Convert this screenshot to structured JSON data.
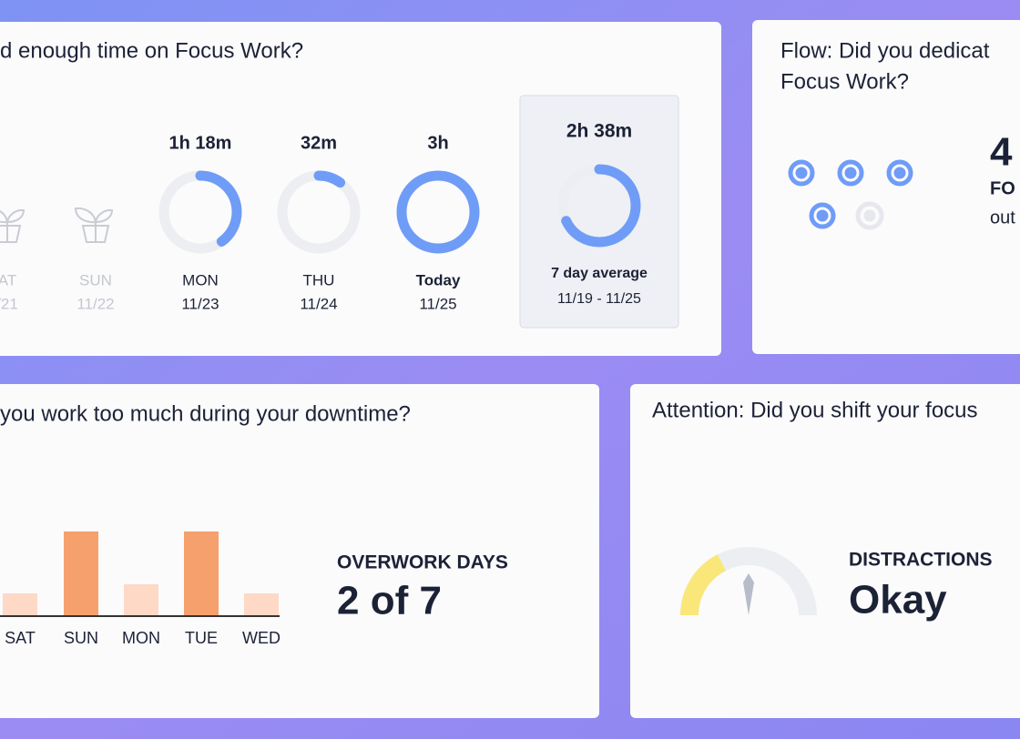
{
  "focus_card": {
    "title": "d enough time on Focus Work?",
    "days": [
      {
        "day": "AT",
        "date": "/21",
        "empty": true
      },
      {
        "day": "SUN",
        "date": "11/22",
        "empty": true
      },
      {
        "time": "1h 18m",
        "day": "MON",
        "date": "11/23",
        "progress": 0.4
      },
      {
        "time": "32m",
        "day": "THU",
        "date": "11/24",
        "progress": 0.1
      },
      {
        "time": "3h",
        "day": "Today",
        "date": "11/25",
        "progress": 1
      }
    ],
    "average": {
      "time": "2h 38m",
      "progress": 0.68,
      "label": "7 day average",
      "range": "11/19 - 11/25"
    }
  },
  "flow_card": {
    "title_lines": [
      "Flow: Did you dedicat",
      "Focus Work?"
    ],
    "count": "4",
    "label": "FO",
    "sub": "out"
  },
  "overwork_card": {
    "title": "you work too much during your downtime?",
    "bars": [
      {
        "day": "SAT",
        "value": 24,
        "overwork": false
      },
      {
        "day": "SUN",
        "value": 92,
        "overwork": true
      },
      {
        "day": "MON",
        "value": 34,
        "overwork": false
      },
      {
        "day": "TUE",
        "value": 92,
        "overwork": true
      },
      {
        "day": "WED",
        "value": 24,
        "overwork": false
      }
    ],
    "label": "OVERWORK DAYS",
    "result": "2 of 7"
  },
  "attention_card": {
    "title": "Attention: Did you shift your focus",
    "gauge": 0.35,
    "label": "DISTRACTIONS",
    "result": "Okay"
  }
}
